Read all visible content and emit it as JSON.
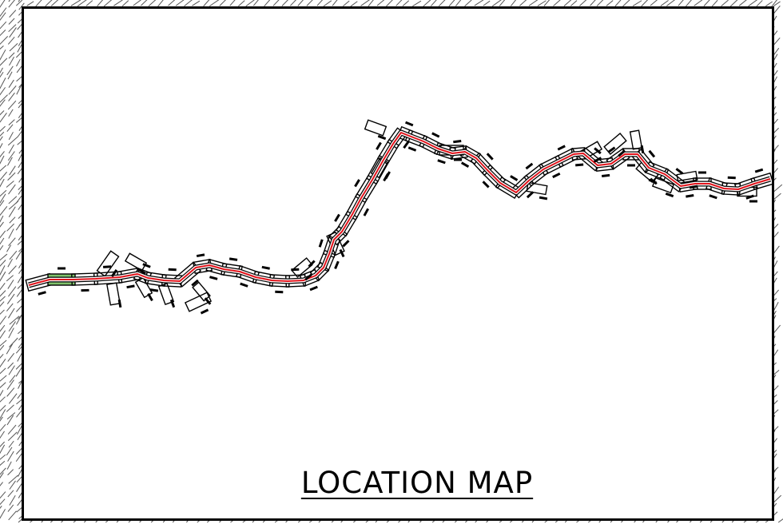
{
  "map": {
    "title": "LOCATION MAP",
    "route_color": "#e2141c",
    "outline_color": "#000000",
    "highlight_color": "#7fc26b",
    "frame_color": "#000000",
    "hatch_color": "#555555"
  }
}
